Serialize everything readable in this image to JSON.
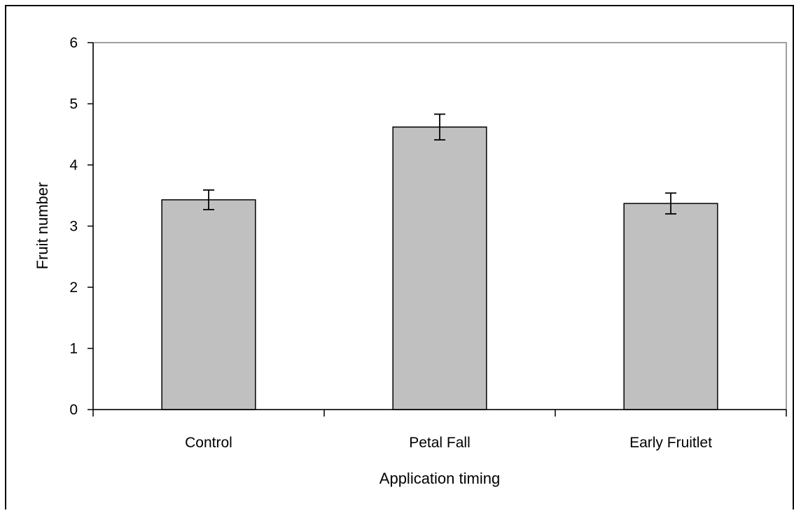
{
  "chart_data": {
    "type": "bar",
    "categories": [
      "Control",
      "Petal Fall",
      "Early Fruitlet"
    ],
    "values": [
      3.43,
      4.62,
      3.37
    ],
    "error": [
      0.16,
      0.21,
      0.17
    ],
    "xlabel": "Application timing",
    "ylabel": "Fruit number",
    "ylim": [
      0,
      6
    ],
    "yticks": [
      "0",
      "1",
      "2",
      "3",
      "4",
      "5",
      "6"
    ],
    "grid": false,
    "colors": {
      "bar_fill": "#c0c0c0",
      "bar_stroke": "#000000",
      "plot_border": "#808080"
    }
  }
}
